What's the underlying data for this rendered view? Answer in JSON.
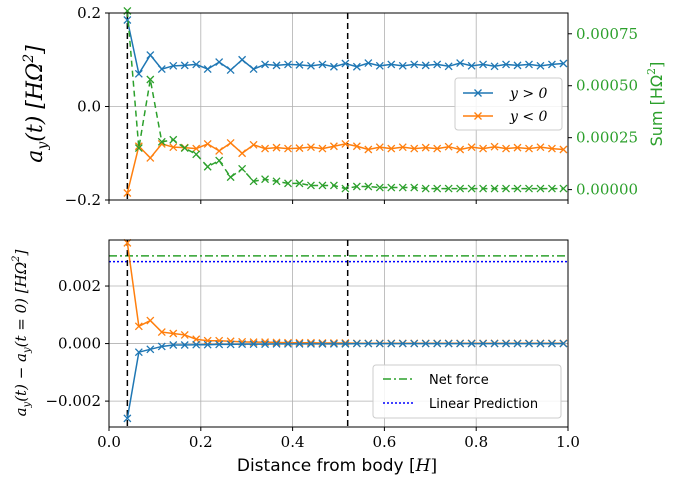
{
  "chart_data": [
    {
      "type": "line",
      "ylabel": "a_y(t) [HΩ²]",
      "ylabel_parts": {
        "main": "a",
        "sub": "y",
        "arg": "(t) [HΩ",
        "sup": "2",
        "close": "]"
      },
      "y2label": "Sum [HΩ²]",
      "y2label_parts": {
        "main": "Sum [HΩ",
        "sup": "2",
        "close": "]"
      },
      "xlim": [
        0.0,
        1.0
      ],
      "ylim": [
        -0.2,
        0.2
      ],
      "y2lim": [
        -5e-05,
        0.00085
      ],
      "yticks": [
        -0.2,
        0.0,
        0.2
      ],
      "yticklabels": [
        "−0.2",
        "0.0",
        "0.2"
      ],
      "y2ticks": [
        0.0,
        0.00025,
        0.0005,
        0.00075
      ],
      "y2ticklabels": [
        "0.00000",
        "0.00025",
        "0.00050",
        "0.00075"
      ],
      "grid": true,
      "vlines": [
        0.04,
        0.52
      ],
      "legend": {
        "placement": "center-right",
        "entries": [
          "y > 0",
          "y < 0"
        ]
      },
      "series": [
        {
          "name": "y > 0",
          "color": "#1f77b4",
          "axis": "left",
          "x": [
            0.04,
            0.065,
            0.09,
            0.115,
            0.14,
            0.165,
            0.19,
            0.215,
            0.24,
            0.265,
            0.29,
            0.315,
            0.34,
            0.365,
            0.39,
            0.415,
            0.44,
            0.465,
            0.49,
            0.515,
            0.54,
            0.565,
            0.59,
            0.615,
            0.64,
            0.665,
            0.69,
            0.715,
            0.74,
            0.765,
            0.79,
            0.815,
            0.84,
            0.865,
            0.89,
            0.915,
            0.94,
            0.965,
            0.99
          ],
          "y": [
            0.185,
            0.07,
            0.11,
            0.08,
            0.087,
            0.088,
            0.09,
            0.08,
            0.095,
            0.078,
            0.1,
            0.08,
            0.09,
            0.088,
            0.09,
            0.089,
            0.087,
            0.09,
            0.085,
            0.092,
            0.085,
            0.093,
            0.087,
            0.09,
            0.087,
            0.09,
            0.088,
            0.09,
            0.086,
            0.093,
            0.087,
            0.09,
            0.086,
            0.09,
            0.088,
            0.09,
            0.087,
            0.09,
            0.092
          ]
        },
        {
          "name": "y < 0",
          "color": "#ff7f0e",
          "axis": "left",
          "x": [
            0.04,
            0.065,
            0.09,
            0.115,
            0.14,
            0.165,
            0.19,
            0.215,
            0.24,
            0.265,
            0.29,
            0.315,
            0.34,
            0.365,
            0.39,
            0.415,
            0.44,
            0.465,
            0.49,
            0.515,
            0.54,
            0.565,
            0.59,
            0.615,
            0.64,
            0.665,
            0.69,
            0.715,
            0.74,
            0.765,
            0.79,
            0.815,
            0.84,
            0.865,
            0.89,
            0.915,
            0.94,
            0.965,
            0.99
          ],
          "y": [
            -0.185,
            -0.085,
            -0.11,
            -0.08,
            -0.087,
            -0.088,
            -0.09,
            -0.08,
            -0.095,
            -0.078,
            -0.1,
            -0.082,
            -0.09,
            -0.088,
            -0.09,
            -0.089,
            -0.087,
            -0.09,
            -0.085,
            -0.08,
            -0.085,
            -0.092,
            -0.087,
            -0.09,
            -0.087,
            -0.09,
            -0.088,
            -0.09,
            -0.086,
            -0.092,
            -0.087,
            -0.09,
            -0.086,
            -0.09,
            -0.088,
            -0.09,
            -0.087,
            -0.09,
            -0.092
          ]
        },
        {
          "name": "",
          "color": "#2ca02c",
          "axis": "right",
          "style": "dashed",
          "x": [
            0.04,
            0.065,
            0.09,
            0.115,
            0.14,
            0.165,
            0.19,
            0.215,
            0.24,
            0.265,
            0.29,
            0.315,
            0.34,
            0.365,
            0.39,
            0.415,
            0.44,
            0.465,
            0.49,
            0.515,
            0.54,
            0.565,
            0.59,
            0.615,
            0.64,
            0.665,
            0.69,
            0.715,
            0.74,
            0.765,
            0.79,
            0.815,
            0.84,
            0.865,
            0.89,
            0.915,
            0.94,
            0.965,
            0.99
          ],
          "y": [
            0.00086,
            0.0002,
            0.00053,
            0.00023,
            0.00024,
            0.0002,
            0.00017,
            0.00011,
            0.00014,
            6e-05,
            0.0001,
            4e-05,
            5e-05,
            4e-05,
            3e-05,
            3e-05,
            2e-05,
            2e-05,
            2e-05,
            5e-06,
            1.5e-05,
            1.5e-05,
            1e-05,
            1e-05,
            1e-05,
            1e-05,
            5e-06,
            5e-06,
            5e-06,
            5e-06,
            5e-06,
            5e-06,
            5e-06,
            5e-06,
            5e-06,
            5e-06,
            5e-06,
            5e-06,
            5e-06
          ]
        }
      ]
    },
    {
      "type": "line",
      "xlabel": "Distance from body [H]",
      "xlabel_parts": {
        "main": "Distance from body [",
        "var": "H",
        "close": "]"
      },
      "ylabel": "a_y(t) − a_y(t = 0) [HΩ²]",
      "ylabel_parts": {
        "a1": "a",
        "s1": "y",
        "m1": "(t) − ",
        "a2": "a",
        "s2": "y",
        "m2": "(t = 0) [HΩ",
        "sup": "2",
        "close": "]"
      },
      "xlim": [
        0.0,
        1.0
      ],
      "ylim": [
        -0.0029,
        0.0036
      ],
      "xticks": [
        0.0,
        0.2,
        0.4,
        0.6,
        0.8,
        1.0
      ],
      "xticklabels": [
        "0.0",
        "0.2",
        "0.4",
        "0.6",
        "0.8",
        "1.0"
      ],
      "yticks": [
        -0.002,
        0.0,
        0.002
      ],
      "yticklabels": [
        "−0.002",
        "0.000",
        "0.002"
      ],
      "grid": true,
      "vlines": [
        0.04,
        0.52
      ],
      "hlines": [
        {
          "name": "Net force",
          "y": 0.00305,
          "color": "#2ca02c",
          "style": "dashdot"
        },
        {
          "name": "Linear Prediction",
          "y": 0.00285,
          "color": "#0000ff",
          "style": "dotted"
        }
      ],
      "legend": {
        "placement": "bottom-right",
        "entries": [
          "Net force",
          "Linear Prediction"
        ]
      },
      "series": [
        {
          "name": "",
          "color": "#ff7f0e",
          "x": [
            0.04,
            0.065,
            0.09,
            0.115,
            0.14,
            0.165,
            0.19,
            0.215,
            0.24,
            0.265,
            0.29,
            0.315,
            0.34,
            0.365,
            0.39,
            0.415,
            0.44,
            0.465,
            0.49,
            0.515,
            0.54,
            0.565,
            0.59,
            0.615,
            0.64,
            0.665,
            0.69,
            0.715,
            0.74,
            0.765,
            0.79,
            0.815,
            0.84,
            0.865,
            0.89,
            0.915,
            0.94,
            0.965,
            0.99
          ],
          "y": [
            0.0035,
            0.0006,
            0.0008,
            0.0004,
            0.00035,
            0.0003,
            0.00015,
            0.0001,
            0.0001,
            8e-05,
            6e-05,
            5e-05,
            5e-05,
            4e-05,
            3e-05,
            3e-05,
            3e-05,
            2e-05,
            2e-05,
            2e-05,
            1e-05,
            1e-05,
            1e-05,
            1e-05,
            1e-05,
            1e-05,
            1e-05,
            1e-05,
            1e-05,
            1e-05,
            1e-05,
            1e-05,
            1e-05,
            1e-05,
            1e-05,
            1e-05,
            1e-05,
            1e-05,
            1e-05
          ]
        },
        {
          "name": "",
          "color": "#1f77b4",
          "x": [
            0.04,
            0.065,
            0.09,
            0.115,
            0.14,
            0.165,
            0.19,
            0.215,
            0.24,
            0.265,
            0.29,
            0.315,
            0.34,
            0.365,
            0.39,
            0.415,
            0.44,
            0.465,
            0.49,
            0.515,
            0.54,
            0.565,
            0.59,
            0.615,
            0.64,
            0.665,
            0.69,
            0.715,
            0.74,
            0.765,
            0.79,
            0.815,
            0.84,
            0.865,
            0.89,
            0.915,
            0.94,
            0.965,
            0.99
          ],
          "y": [
            -0.0026,
            -0.0003,
            -0.0002,
            -0.0001,
            -5e-05,
            -5e-05,
            -4e-05,
            -4e-05,
            -3e-05,
            -3e-05,
            -2e-05,
            -2e-05,
            -2e-05,
            -1e-05,
            -1e-05,
            -1e-05,
            -1e-05,
            -1e-05,
            -1e-05,
            -1e-05,
            0.0,
            0.0,
            0.0,
            0.0,
            0.0,
            0.0,
            0.0,
            0.0,
            0.0,
            0.0,
            0.0,
            0.0,
            0.0,
            0.0,
            0.0,
            0.0,
            0.0,
            0.0,
            0.0
          ]
        }
      ]
    }
  ]
}
